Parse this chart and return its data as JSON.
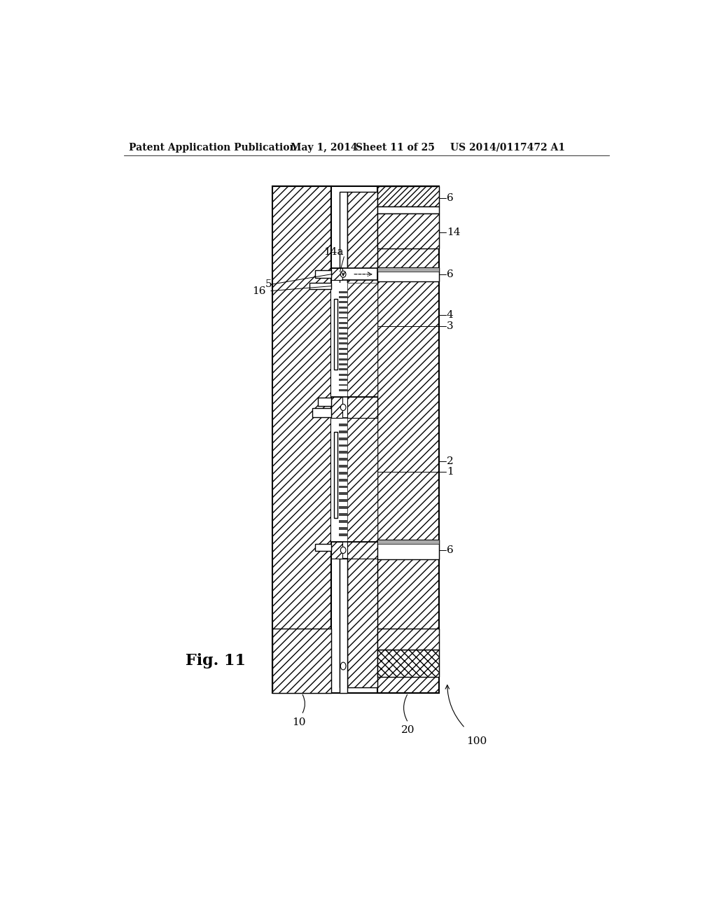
{
  "bg_color": "#ffffff",
  "header_text": "Patent Application Publication",
  "header_date": "May 1, 2014",
  "header_sheet": "Sheet 11 of 25",
  "header_patent": "US 2014/0117472 A1",
  "fig_label": "Fig. 11",
  "line_color": "#000000",
  "hatch_density": "///",
  "cross_hatch": "xxx"
}
